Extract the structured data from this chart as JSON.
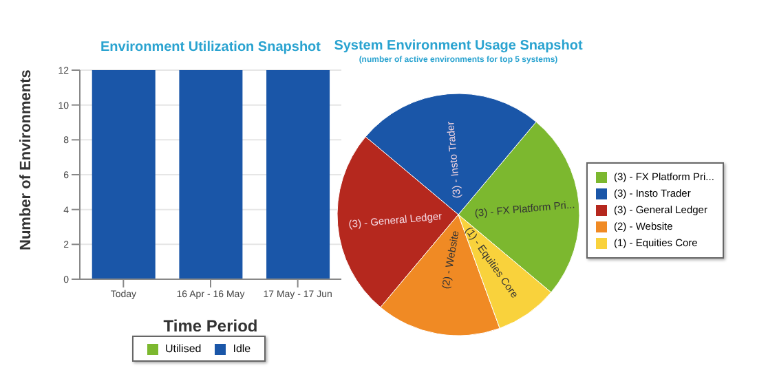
{
  "chart_data": [
    {
      "type": "bar",
      "title": "Environment Utilization Snapshot",
      "xlabel": "Time Period",
      "ylabel": "Number of Environments",
      "categories": [
        "Today",
        "16 Apr - 16 May",
        "17 May - 17 Jun"
      ],
      "series": [
        {
          "name": "Utilised",
          "color": "#7cb82f",
          "values": [
            0,
            0,
            0
          ]
        },
        {
          "name": "Idle",
          "color": "#1a56a8",
          "values": [
            12,
            12,
            12
          ]
        }
      ],
      "stacked": true,
      "ylim": [
        0,
        12
      ],
      "yticks": [
        0,
        2,
        4,
        6,
        8,
        10,
        12
      ],
      "grid": "y",
      "legend": "bottom"
    },
    {
      "type": "pie",
      "title": "System Environment Usage Snapshot",
      "subtitle": "(number of active environments for top 5 systems)",
      "categories": [
        "(3) - FX Platform Pri...",
        "(3) - Insto Trader",
        "(3) - General Ledger",
        "(2) - Website",
        "(1) - Equities Core"
      ],
      "values": [
        3,
        3,
        3,
        2,
        1
      ],
      "colors": [
        "#7cb82f",
        "#1a56a8",
        "#b5281e",
        "#f08a24",
        "#f9d23c"
      ],
      "legend": "right"
    }
  ]
}
